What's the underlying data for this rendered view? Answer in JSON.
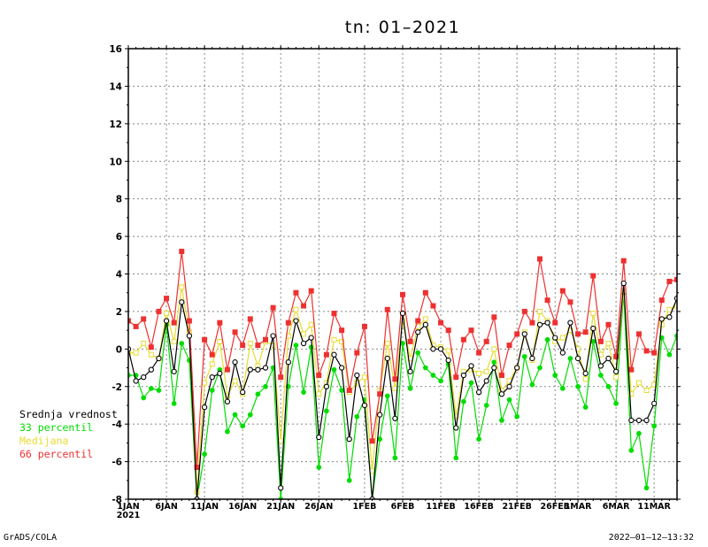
{
  "chart_data": {
    "type": "line",
    "title": "tn: 01–2021",
    "xlabel": "",
    "ylabel": "",
    "ylim": [
      -8,
      16
    ],
    "y_ticks": [
      -8,
      -6,
      -4,
      -2,
      0,
      2,
      4,
      6,
      8,
      10,
      12,
      14,
      16
    ],
    "x_start_label": "2021",
    "x_ticks": [
      {
        "day": 0,
        "label": "1JAN"
      },
      {
        "day": 5,
        "label": "6JAN"
      },
      {
        "day": 10,
        "label": "11JAN"
      },
      {
        "day": 15,
        "label": "16JAN"
      },
      {
        "day": 20,
        "label": "21JAN"
      },
      {
        "day": 25,
        "label": "26JAN"
      },
      {
        "day": 31,
        "label": "1FEB"
      },
      {
        "day": 36,
        "label": "6FEB"
      },
      {
        "day": 41,
        "label": "11FEB"
      },
      {
        "day": 46,
        "label": "16FEB"
      },
      {
        "day": 51,
        "label": "21FEB"
      },
      {
        "day": 56,
        "label": "26FEB"
      },
      {
        "day": 59,
        "label": "1MAR"
      },
      {
        "day": 64,
        "label": "6MAR"
      },
      {
        "day": 69,
        "label": "11MAR"
      }
    ],
    "x_range_days": [
      0,
      72
    ],
    "grid": true,
    "legend_position": "left",
    "series": [
      {
        "name": "Srednja vrednost",
        "color": "#000000",
        "marker": "circle",
        "values": [
          0.0,
          -1.7,
          -1.5,
          -1.1,
          -0.5,
          1.5,
          -1.2,
          2.5,
          0.7,
          -8.0,
          -3.1,
          -1.5,
          -1.3,
          -2.8,
          -0.7,
          -2.3,
          -1.1,
          -1.1,
          -1.0,
          0.7,
          -7.4,
          -0.7,
          1.5,
          0.3,
          0.6,
          -4.7,
          -2.0,
          -0.3,
          -1.0,
          -4.8,
          -1.4,
          -3.0,
          -8.0,
          -3.5,
          -0.5,
          -3.7,
          1.9,
          -1.2,
          0.9,
          1.3,
          0.0,
          0.0,
          -0.6,
          -4.2,
          -1.4,
          -0.9,
          -2.3,
          -1.7,
          -1.0,
          -2.4,
          -2.0,
          -1.0,
          0.8,
          -0.5,
          1.3,
          1.4,
          0.6,
          -0.2,
          1.4,
          -0.5,
          -1.3,
          1.1,
          -0.9,
          -0.5,
          -1.2,
          3.5,
          -3.8,
          -3.8,
          -3.8,
          -2.9,
          1.6,
          1.7,
          2.7
        ]
      },
      {
        "name": "33 percentil",
        "color": "#00dd00",
        "marker": "filled-circle",
        "values": [
          -1.4,
          -1.4,
          -2.6,
          -2.1,
          -2.2,
          1.3,
          -2.9,
          0.3,
          -0.6,
          -8.0,
          -5.6,
          -2.2,
          -1.1,
          -4.4,
          -3.5,
          -4.1,
          -3.5,
          -2.4,
          -2.0,
          -1.0,
          -8.0,
          -2.0,
          0.2,
          -2.3,
          0.1,
          -6.3,
          -3.3,
          -1.1,
          -2.2,
          -7.0,
          -3.6,
          -2.7,
          -8.0,
          -4.8,
          -2.5,
          -5.8,
          0.3,
          -2.1,
          -0.2,
          -1.0,
          -1.4,
          -1.7,
          -0.8,
          -5.8,
          -2.8,
          -1.8,
          -4.8,
          -3.0,
          -0.7,
          -3.8,
          -2.7,
          -3.6,
          -0.4,
          -1.9,
          -1.0,
          0.5,
          -1.4,
          -2.1,
          -0.5,
          -2.0,
          -3.1,
          0.4,
          -1.4,
          -2.0,
          -2.9,
          3.0,
          -5.4,
          -4.5,
          -7.4,
          -4.1,
          0.6,
          -0.3,
          0.7
        ]
      },
      {
        "name": "Medijana",
        "color": "#e6dc32",
        "marker": "square",
        "values": [
          -0.2,
          -0.2,
          0.3,
          -0.3,
          -0.5,
          1.9,
          0.4,
          3.3,
          0.9,
          -7.6,
          -1.8,
          -0.8,
          0.4,
          -2.5,
          -1.7,
          -2.4,
          0.3,
          -0.9,
          0.4,
          0.2,
          -4.9,
          0.7,
          2.1,
          0.8,
          1.3,
          -2.4,
          -1.8,
          0.5,
          0.4,
          -2.3,
          -1.8,
          -1.5,
          -6.5,
          -2.2,
          0.3,
          -2.1,
          1.5,
          -0.5,
          1.2,
          1.6,
          0.2,
          0.1,
          -0.1,
          -3.6,
          -1.2,
          -1.1,
          -1.3,
          -1.2,
          0.0,
          -2.2,
          -1.7,
          -1.0,
          0.9,
          -0.6,
          2.0,
          1.5,
          0.4,
          0.6,
          1.0,
          0.0,
          -1.6,
          1.9,
          -0.3,
          0.3,
          -1.5,
          3.1,
          -2.4,
          -1.8,
          -2.2,
          -1.9,
          1.3,
          2.1,
          2.3
        ]
      },
      {
        "name": "66 percentil",
        "color": "#ee3030",
        "marker": "filled-square",
        "values": [
          1.5,
          1.2,
          1.6,
          0.1,
          2.0,
          2.7,
          1.4,
          5.2,
          1.5,
          -6.3,
          0.5,
          -0.3,
          1.4,
          -1.1,
          0.9,
          0.2,
          1.6,
          0.2,
          0.5,
          2.2,
          -1.5,
          1.4,
          3.0,
          2.3,
          3.1,
          -1.4,
          -0.3,
          1.9,
          1.0,
          -2.2,
          -0.2,
          1.2,
          -4.9,
          -2.4,
          2.1,
          -1.6,
          2.9,
          0.4,
          1.5,
          3.0,
          2.3,
          1.4,
          1.0,
          -1.5,
          0.5,
          1.0,
          -0.2,
          0.4,
          1.7,
          -1.4,
          0.2,
          0.8,
          2.0,
          1.4,
          4.8,
          2.6,
          1.4,
          3.1,
          2.5,
          0.8,
          0.9,
          3.9,
          0.4,
          1.3,
          -0.4,
          4.7,
          -1.1,
          0.8,
          -0.1,
          -0.2,
          2.6,
          3.6,
          3.7
        ]
      }
    ]
  },
  "legend": {
    "items": [
      {
        "label": "Srednja vrednost",
        "color": "#000000"
      },
      {
        "label": "33 percentil",
        "color": "#00dd00"
      },
      {
        "label": "Medijana",
        "color": "#e6dc32"
      },
      {
        "label": "66 percentil",
        "color": "#ee3030"
      }
    ]
  },
  "footer": {
    "left": "GrADS/COLA",
    "right": "2022–01–12–13:32"
  }
}
